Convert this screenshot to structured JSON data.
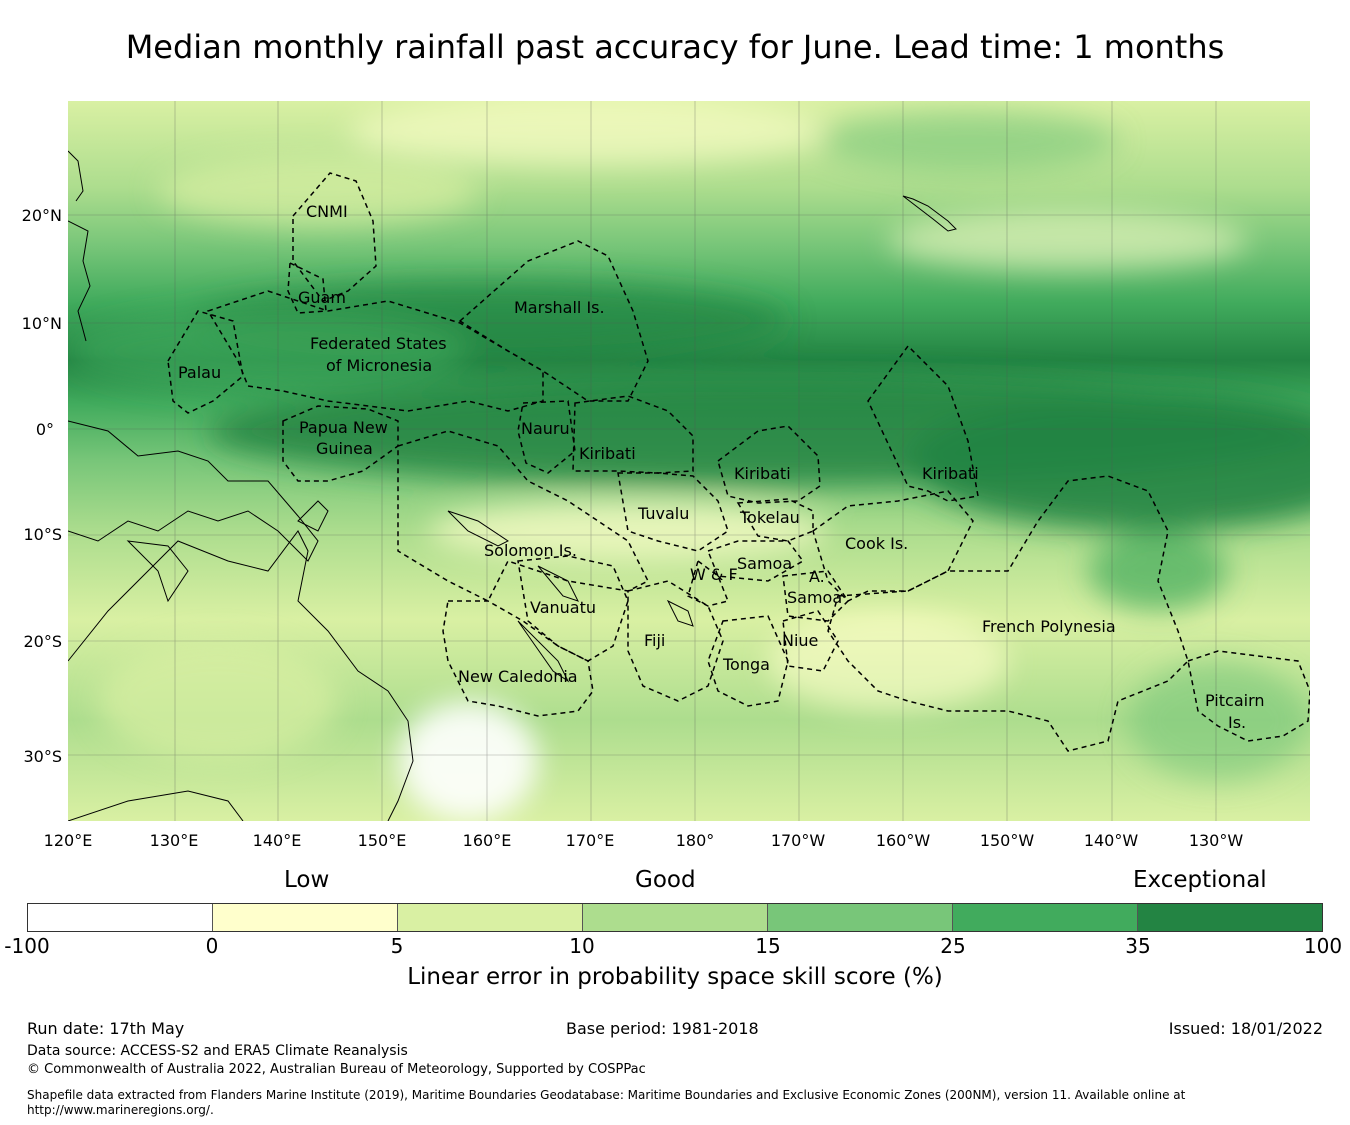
{
  "title": "Median monthly rainfall past accuracy for June. Lead time: 1 months",
  "map": {
    "lat_ticks": [
      "20°N",
      "10°N",
      "0°",
      "10°S",
      "20°S",
      "30°S"
    ],
    "lon_ticks": [
      "120°E",
      "130°E",
      "140°E",
      "150°E",
      "160°E",
      "170°E",
      "180°",
      "170°W",
      "160°W",
      "150°W",
      "140°W",
      "130°W"
    ],
    "regions": [
      {
        "name": "CNMI"
      },
      {
        "name": "Guam"
      },
      {
        "name": "Marshall Is."
      },
      {
        "name": "Federated States"
      },
      {
        "name": "of Micronesia"
      },
      {
        "name": "Palau"
      },
      {
        "name": "Papua New"
      },
      {
        "name": "Guinea"
      },
      {
        "name": "Nauru"
      },
      {
        "name": "Kiribati"
      },
      {
        "name": "Kiribati"
      },
      {
        "name": "Kiribati"
      },
      {
        "name": "Tuvalu"
      },
      {
        "name": "Tokelau"
      },
      {
        "name": "Solomon Is."
      },
      {
        "name": "Cook Is."
      },
      {
        "name": "Samoa"
      },
      {
        "name": "W & F"
      },
      {
        "name": "A."
      },
      {
        "name": "Samoa"
      },
      {
        "name": "Vanuatu"
      },
      {
        "name": "Fiji"
      },
      {
        "name": "Niue"
      },
      {
        "name": "Tonga"
      },
      {
        "name": "French Polynesia"
      },
      {
        "name": "New Caledonia"
      },
      {
        "name": "Pitcairn"
      },
      {
        "name": "Is."
      }
    ]
  },
  "legend": {
    "categories": [
      "Low",
      "Good",
      "Exceptional"
    ],
    "ticks": [
      "-100",
      "0",
      "5",
      "10",
      "15",
      "25",
      "35",
      "100"
    ],
    "colors": [
      "#ffffff",
      "#ffffcc",
      "#d9f0a3",
      "#addd8e",
      "#78c679",
      "#41ab5d",
      "#238443"
    ],
    "title": "Linear error in probability space skill score (%)"
  },
  "footer": {
    "run_date": "Run date: 17th May",
    "base_period": "Base period: 1981-2018",
    "issued": "Issued: 18/01/2022",
    "data_source": "Data source: ACCESS-S2 and ERA5 Climate Reanalysis",
    "copyright": "© Commonwealth of Australia 2022, Australian Bureau of Meteorology, Supported by COSPPac",
    "shapefile_note": "Shapefile data extracted from Flanders Marine Institute (2019), Maritime Boundaries Geodatabase: Maritime Boundaries and Exclusive Economic Zones (200NM), version 11. Available online at http://www.marineregions.org/."
  }
}
